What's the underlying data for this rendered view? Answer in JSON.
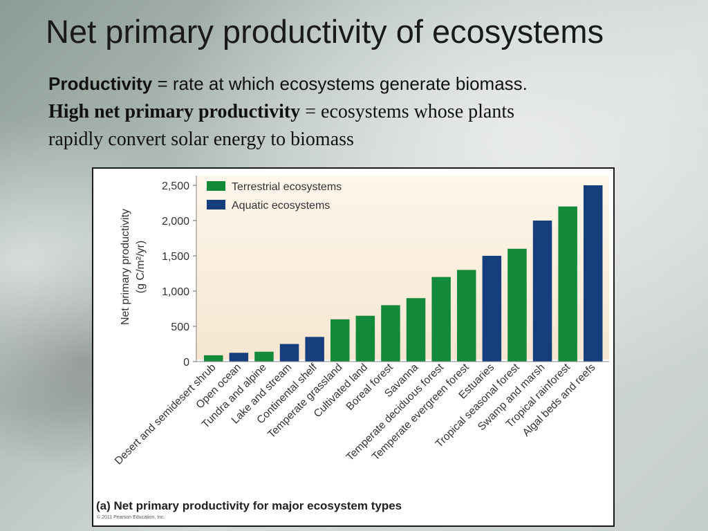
{
  "slide": {
    "title": "Net primary productivity of ecosystems",
    "line1_bold": "Productivity",
    "line1_rest": " = rate at which ecosystems generate biomass.",
    "line2_bold": "High net primary productivity",
    "line2_rest": " = ecosystems whose plants",
    "line3": "rapidly convert solar energy to biomass"
  },
  "figure": {
    "caption": "(a) Net primary productivity for major ecosystem types",
    "copyright": "© 2011 Pearson Education, Inc."
  },
  "colors": {
    "terrestrial": "#138a3a",
    "aquatic": "#163d7c",
    "plot_background_top": "#fdf6ea",
    "plot_background_bottom": "#f6e6d1"
  },
  "chart_data": {
    "type": "bar",
    "title": "",
    "ylabel_line1": "Net primary productivity",
    "ylabel_line2": "(g C/m²/yr)",
    "xlabel": "",
    "ylim": [
      0,
      2500
    ],
    "yticks": [
      0,
      500,
      1000,
      1500,
      2000,
      2500
    ],
    "ytick_labels": [
      "0",
      "500",
      "1,000",
      "1,500",
      "2,000",
      "2,500"
    ],
    "grid": false,
    "legend_position": "top-left",
    "legend": [
      {
        "name": "Terrestrial ecosystems",
        "color_key": "terrestrial"
      },
      {
        "name": "Aquatic ecosystems",
        "color_key": "aquatic"
      }
    ],
    "categories": [
      "Desert and semidesert shrub",
      "Open ocean",
      "Tundra and alpine",
      "Lake and stream",
      "Continental shelf",
      "Temperate grassland",
      "Cultivated land",
      "Boreal forest",
      "Savanna",
      "Temperate deciduous forest",
      "Temperate evergreen forest",
      "Estuaries",
      "Tropical seasonal forest",
      "Swamp and marsh",
      "Tropical rainforest",
      "Algal beds and reefs"
    ],
    "values": [
      90,
      125,
      140,
      250,
      350,
      600,
      650,
      800,
      900,
      1200,
      1300,
      1500,
      1600,
      2000,
      2200,
      2500
    ],
    "series_membership": [
      "terrestrial",
      "aquatic",
      "terrestrial",
      "aquatic",
      "aquatic",
      "terrestrial",
      "terrestrial",
      "terrestrial",
      "terrestrial",
      "terrestrial",
      "terrestrial",
      "aquatic",
      "terrestrial",
      "aquatic",
      "terrestrial",
      "aquatic"
    ]
  }
}
